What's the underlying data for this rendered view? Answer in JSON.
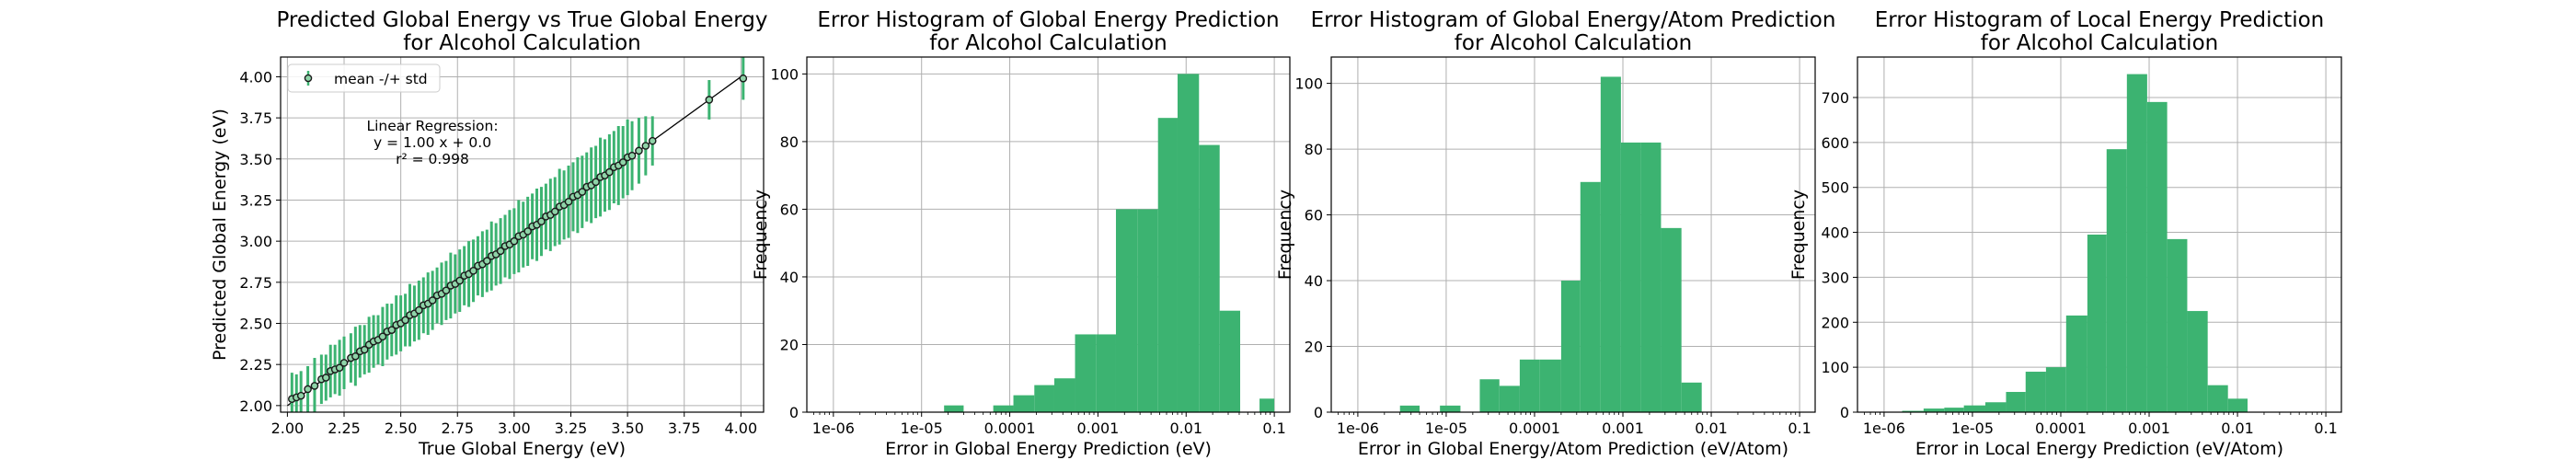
{
  "chart_data": [
    {
      "type": "scatter",
      "title_lines": [
        "Predicted Global Energy vs True Global Energy",
        "for Alcohol Calculation"
      ],
      "xlabel": "True Global Energy (eV)",
      "ylabel": "Predicted Global Energy (eV)",
      "xlim": [
        1.97,
        4.1
      ],
      "ylim": [
        1.96,
        4.12
      ],
      "xticks": [
        2.0,
        2.25,
        2.5,
        2.75,
        3.0,
        3.25,
        3.5,
        3.75,
        4.0
      ],
      "xtick_labels": [
        "2.00",
        "2.25",
        "2.50",
        "2.75",
        "3.00",
        "3.25",
        "3.50",
        "3.75",
        "4.00"
      ],
      "yticks": [
        2.0,
        2.25,
        2.5,
        2.75,
        3.0,
        3.25,
        3.5,
        3.75,
        4.0
      ],
      "ytick_labels": [
        "2.00",
        "2.25",
        "2.50",
        "2.75",
        "3.00",
        "3.25",
        "3.50",
        "3.75",
        "4.00"
      ],
      "grid": true,
      "legend": {
        "position": "top-left",
        "label": "mean -/+ std"
      },
      "annotation": [
        "Linear Regression:",
        "y = 1.00 x + 0.0",
        "r² = 0.998"
      ],
      "regression": {
        "slope": 1.0,
        "intercept": 0.0
      },
      "colors": {
        "errorbar": "#3cb371",
        "marker_fill": "#8fd3a8",
        "marker_edge": "#1a1a1a",
        "line": "#000000"
      },
      "series": [
        {
          "name": "mean -/+ std",
          "points": [
            [
              2.02,
              2.04,
              0.16
            ],
            [
              2.04,
              2.05,
              0.14
            ],
            [
              2.06,
              2.06,
              0.15
            ],
            [
              2.09,
              2.1,
              0.14
            ],
            [
              2.12,
              2.12,
              0.17
            ],
            [
              2.15,
              2.16,
              0.15
            ],
            [
              2.17,
              2.17,
              0.14
            ],
            [
              2.19,
              2.21,
              0.16
            ],
            [
              2.21,
              2.22,
              0.15
            ],
            [
              2.23,
              2.23,
              0.17
            ],
            [
              2.25,
              2.26,
              0.16
            ],
            [
              2.28,
              2.29,
              0.15
            ],
            [
              2.3,
              2.3,
              0.18
            ],
            [
              2.32,
              2.33,
              0.16
            ],
            [
              2.34,
              2.34,
              0.15
            ],
            [
              2.36,
              2.37,
              0.17
            ],
            [
              2.38,
              2.39,
              0.16
            ],
            [
              2.4,
              2.4,
              0.15
            ],
            [
              2.42,
              2.42,
              0.18
            ],
            [
              2.44,
              2.45,
              0.17
            ],
            [
              2.46,
              2.46,
              0.16
            ],
            [
              2.48,
              2.49,
              0.18
            ],
            [
              2.5,
              2.5,
              0.17
            ],
            [
              2.52,
              2.52,
              0.16
            ],
            [
              2.54,
              2.55,
              0.19
            ],
            [
              2.56,
              2.56,
              0.17
            ],
            [
              2.58,
              2.58,
              0.18
            ],
            [
              2.6,
              2.61,
              0.17
            ],
            [
              2.62,
              2.62,
              0.19
            ],
            [
              2.64,
              2.64,
              0.18
            ],
            [
              2.66,
              2.67,
              0.17
            ],
            [
              2.68,
              2.68,
              0.19
            ],
            [
              2.7,
              2.7,
              0.18
            ],
            [
              2.72,
              2.73,
              0.2
            ],
            [
              2.74,
              2.74,
              0.18
            ],
            [
              2.76,
              2.76,
              0.19
            ],
            [
              2.78,
              2.79,
              0.18
            ],
            [
              2.8,
              2.8,
              0.2
            ],
            [
              2.82,
              2.82,
              0.19
            ],
            [
              2.84,
              2.85,
              0.18
            ],
            [
              2.86,
              2.86,
              0.2
            ],
            [
              2.88,
              2.88,
              0.19
            ],
            [
              2.9,
              2.91,
              0.21
            ],
            [
              2.92,
              2.92,
              0.19
            ],
            [
              2.94,
              2.94,
              0.2
            ],
            [
              2.96,
              2.97,
              0.19
            ],
            [
              2.98,
              2.98,
              0.21
            ],
            [
              3.0,
              3.0,
              0.2
            ],
            [
              3.02,
              3.03,
              0.22
            ],
            [
              3.04,
              3.04,
              0.2
            ],
            [
              3.06,
              3.06,
              0.21
            ],
            [
              3.08,
              3.09,
              0.2
            ],
            [
              3.1,
              3.1,
              0.22
            ],
            [
              3.12,
              3.12,
              0.21
            ],
            [
              3.14,
              3.15,
              0.2
            ],
            [
              3.16,
              3.16,
              0.22
            ],
            [
              3.18,
              3.18,
              0.21
            ],
            [
              3.2,
              3.21,
              0.23
            ],
            [
              3.22,
              3.22,
              0.21
            ],
            [
              3.24,
              3.24,
              0.22
            ],
            [
              3.26,
              3.27,
              0.21
            ],
            [
              3.28,
              3.28,
              0.23
            ],
            [
              3.3,
              3.3,
              0.22
            ],
            [
              3.32,
              3.33,
              0.21
            ],
            [
              3.34,
              3.34,
              0.23
            ],
            [
              3.36,
              3.36,
              0.22
            ],
            [
              3.38,
              3.39,
              0.24
            ],
            [
              3.4,
              3.4,
              0.22
            ],
            [
              3.42,
              3.42,
              0.23
            ],
            [
              3.44,
              3.45,
              0.22
            ],
            [
              3.46,
              3.46,
              0.24
            ],
            [
              3.48,
              3.48,
              0.22
            ],
            [
              3.5,
              3.51,
              0.23
            ],
            [
              3.52,
              3.52,
              0.21
            ],
            [
              3.55,
              3.55,
              0.2
            ],
            [
              3.58,
              3.58,
              0.18
            ],
            [
              3.61,
              3.61,
              0.15
            ],
            [
              3.86,
              3.86,
              0.12
            ],
            [
              4.01,
              3.99,
              0.13
            ]
          ]
        }
      ]
    },
    {
      "type": "bar",
      "title_lines": [
        "Error Histogram of Global Energy Prediction",
        "for Alcohol Calculation"
      ],
      "xlabel": "Error in Global Energy Prediction (eV)",
      "ylabel": "Frequency",
      "xscale": "log",
      "xlim": [
        5e-07,
        0.15
      ],
      "ylim": [
        0,
        105
      ],
      "xticks": [
        1e-06,
        1e-05,
        0.0001,
        0.001,
        0.01,
        0.1
      ],
      "xtick_labels": [
        "1e-06",
        "1e-05",
        "0.0001",
        "0.001",
        "0.01",
        "0.1"
      ],
      "yticks": [
        0,
        20,
        40,
        60,
        80,
        100
      ],
      "ytick_labels": [
        "0",
        "20",
        "40",
        "60",
        "80",
        "100"
      ],
      "grid": true,
      "bar_color": "#3cb371",
      "bins": [
        [
          1.8e-05,
          3e-05,
          2
        ],
        [
          6.5e-05,
          0.00011,
          2
        ],
        [
          0.00011,
          0.00019,
          5
        ],
        [
          0.00019,
          0.00032,
          8
        ],
        [
          0.00032,
          0.00055,
          10
        ],
        [
          0.00055,
          0.00095,
          23
        ],
        [
          0.00095,
          0.0016,
          23
        ],
        [
          0.0016,
          0.0028,
          60
        ],
        [
          0.0028,
          0.0048,
          60
        ],
        [
          0.0048,
          0.008,
          87
        ],
        [
          0.008,
          0.014,
          100
        ],
        [
          0.014,
          0.024,
          79
        ],
        [
          0.024,
          0.041,
          30
        ],
        [
          0.068,
          0.1,
          4
        ]
      ]
    },
    {
      "type": "bar",
      "title_lines": [
        "Error Histogram of Global Energy/Atom Prediction",
        "for Alcohol Calculation"
      ],
      "xlabel": "Error in Global Energy/Atom Prediction (eV/Atom)",
      "ylabel": "Frequency",
      "xscale": "log",
      "xlim": [
        5e-07,
        0.15
      ],
      "ylim": [
        0,
        108
      ],
      "xticks": [
        1e-06,
        1e-05,
        0.0001,
        0.001,
        0.01,
        0.1
      ],
      "xtick_labels": [
        "1e-06",
        "1e-05",
        "0.0001",
        "0.001",
        "0.01",
        "0.1"
      ],
      "yticks": [
        0,
        20,
        40,
        60,
        80,
        100
      ],
      "ytick_labels": [
        "0",
        "20",
        "40",
        "60",
        "80",
        "100"
      ],
      "grid": true,
      "bar_color": "#3cb371",
      "bins": [
        [
          3e-06,
          5e-06,
          2
        ],
        [
          8.5e-06,
          1.45e-05,
          2
        ],
        [
          2.4e-05,
          4e-05,
          10
        ],
        [
          4e-05,
          6.8e-05,
          8
        ],
        [
          6.8e-05,
          0.000115,
          16
        ],
        [
          0.000115,
          0.0002,
          16
        ],
        [
          0.0002,
          0.00033,
          40
        ],
        [
          0.00033,
          0.00056,
          70
        ],
        [
          0.00056,
          0.00095,
          102
        ],
        [
          0.00095,
          0.0016,
          82
        ],
        [
          0.0016,
          0.0027,
          82
        ],
        [
          0.0027,
          0.0046,
          56
        ],
        [
          0.0046,
          0.0078,
          9
        ]
      ]
    },
    {
      "type": "bar",
      "title_lines": [
        "Error Histogram of Local Energy Prediction",
        "for Alcohol Calculation"
      ],
      "xlabel": "Error in Local Energy Prediction (eV/Atom)",
      "ylabel": "Frequency",
      "xscale": "log",
      "xlim": [
        5e-07,
        0.15
      ],
      "ylim": [
        0,
        790
      ],
      "xticks": [
        1e-06,
        1e-05,
        0.0001,
        0.001,
        0.01,
        0.1
      ],
      "xtick_labels": [
        "1e-06",
        "1e-05",
        "0.0001",
        "0.001",
        "0.01",
        "0.1"
      ],
      "yticks": [
        0,
        100,
        200,
        300,
        400,
        500,
        600,
        700
      ],
      "ytick_labels": [
        "0",
        "100",
        "200",
        "300",
        "400",
        "500",
        "600",
        "700"
      ],
      "grid": true,
      "bar_color": "#3cb371",
      "bins": [
        [
          1.6e-06,
          2.8e-06,
          3
        ],
        [
          2.8e-06,
          4.8e-06,
          8
        ],
        [
          4.8e-06,
          8e-06,
          10
        ],
        [
          8e-06,
          1.4e-05,
          15
        ],
        [
          1.4e-05,
          2.4e-05,
          22
        ],
        [
          2.4e-05,
          4e-05,
          45
        ],
        [
          4e-05,
          6.8e-05,
          90
        ],
        [
          6.8e-05,
          0.000115,
          100
        ],
        [
          0.000115,
          0.0002,
          215
        ],
        [
          0.0002,
          0.00033,
          395
        ],
        [
          0.00033,
          0.00056,
          585
        ],
        [
          0.00056,
          0.00095,
          752
        ],
        [
          0.00095,
          0.0016,
          690
        ],
        [
          0.0016,
          0.0027,
          385
        ],
        [
          0.0027,
          0.0046,
          225
        ],
        [
          0.0046,
          0.0078,
          60
        ],
        [
          0.0078,
          0.013,
          30
        ]
      ]
    }
  ]
}
